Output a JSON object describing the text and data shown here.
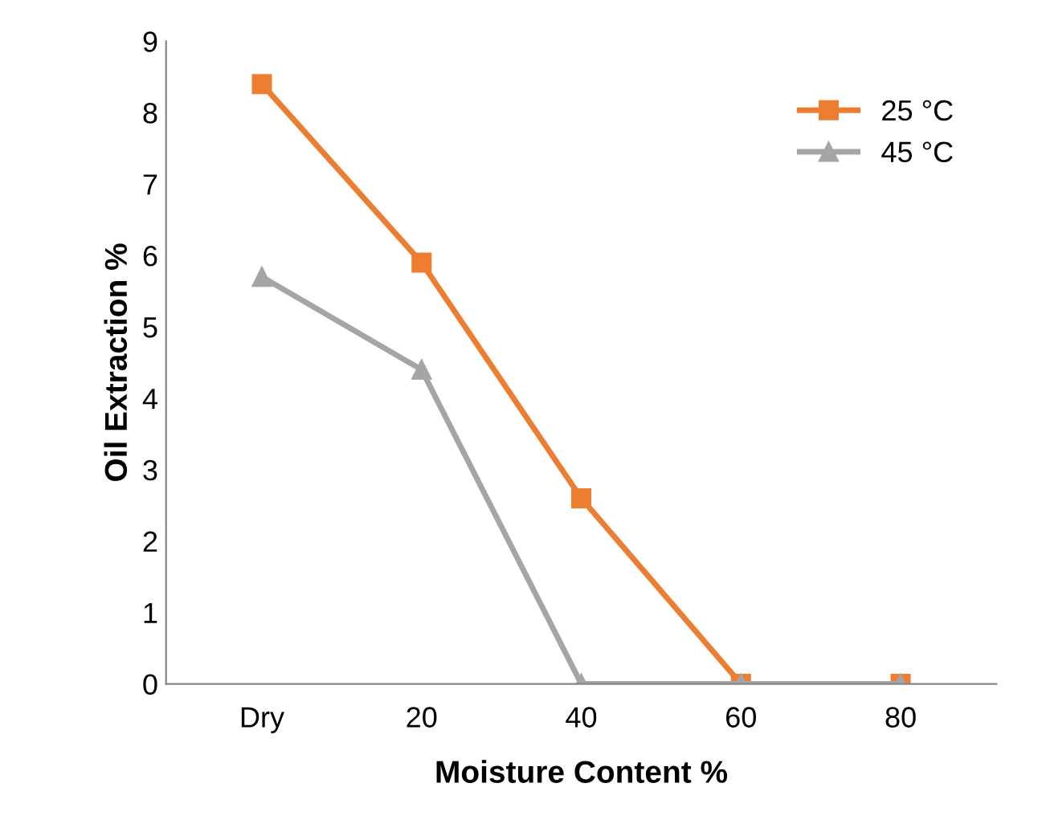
{
  "chart_data": {
    "type": "line",
    "xlabel": "Moisture Content %",
    "ylabel": "Oil Extraction %",
    "categories": [
      "Dry",
      "20",
      "40",
      "60",
      "80"
    ],
    "series": [
      {
        "name": "25 °C",
        "color": "#ed7d31",
        "marker": "square",
        "values": [
          8.4,
          5.9,
          2.6,
          0,
          0
        ]
      },
      {
        "name": "45 °C",
        "color": "#a5a5a5",
        "marker": "triangle",
        "values": [
          5.7,
          4.4,
          0,
          0,
          0
        ]
      }
    ],
    "ylim": [
      0,
      9
    ],
    "yticks": [
      0,
      1,
      2,
      3,
      4,
      5,
      6,
      7,
      8,
      9
    ],
    "grid": false,
    "legend": "top right"
  }
}
